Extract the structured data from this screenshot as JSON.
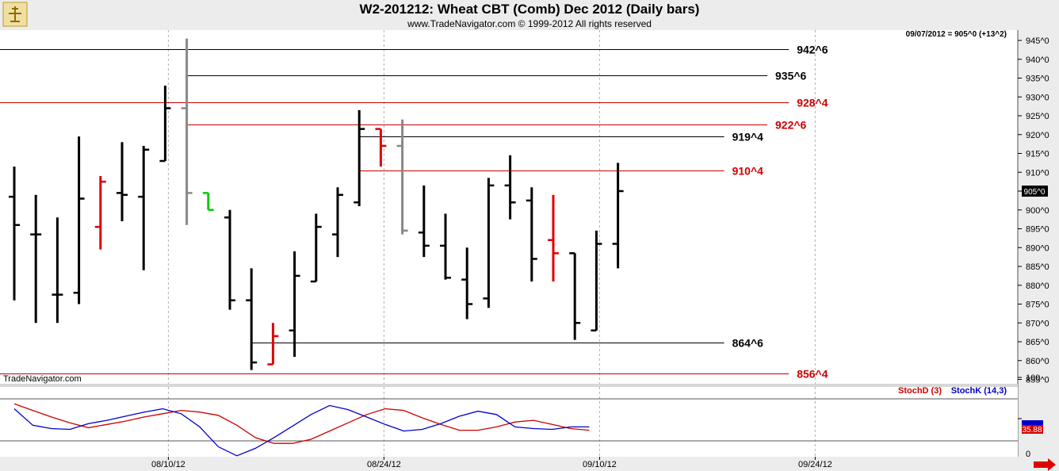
{
  "header": {
    "title": "W2-201212:  Wheat CBT (Comb) Dec 2012  (Daily bars)",
    "subtitle": "www.TradeNavigator.com © 1999-2012 All rights reserved"
  },
  "readout": "09/07/2012 = 905^0 (+13^2)",
  "watermark": "TradeNavigator.com",
  "last_price_label": "905^0",
  "colors": {
    "bar_normal": "#000000",
    "bar_highlight": "#e00000",
    "bar_gray": "#888888",
    "bar_green": "#00cc00",
    "level_black": "#000000",
    "level_red": "#cc0000",
    "stoch_d": "#cc0000",
    "stoch_k": "#0000cc",
    "stoch_d_box": "#d40000",
    "stoch_k_box": "#0000cc"
  },
  "icons": {
    "logo": "tradenavigator-logo-icon",
    "scroll": "red-right-arrow-icon"
  },
  "chart_data": [
    {
      "type": "ohlc",
      "title": "W2-201212:  Wheat CBT (Comb) Dec 2012  (Daily bars)",
      "ylim": [
        855,
        945
      ],
      "y_ticks": [
        "945^0",
        "940^0",
        "935^0",
        "930^0",
        "925^0",
        "920^0",
        "915^0",
        "910^0",
        "905^0",
        "900^0",
        "895^0",
        "890^0",
        "885^0",
        "880^0",
        "875^0",
        "870^0",
        "865^0",
        "860^0",
        "855^0"
      ],
      "x_tick_labels": [
        "08/10/12",
        "08/24/12",
        "09/10/12",
        "09/24/12"
      ],
      "bars": [
        {
          "o": 903.5,
          "h": 911.5,
          "l": 876.0,
          "c": 896.0,
          "color": "black"
        },
        {
          "o": 893.5,
          "h": 904.0,
          "l": 870.0,
          "c": 893.5,
          "color": "black"
        },
        {
          "o": 877.5,
          "h": 898.0,
          "l": 870.0,
          "c": 877.5,
          "color": "black"
        },
        {
          "o": 878.0,
          "h": 919.5,
          "l": 875.0,
          "c": 903.0,
          "color": "black"
        },
        {
          "o": 895.5,
          "h": 909.0,
          "l": 889.5,
          "c": 907.5,
          "color": "red"
        },
        {
          "o": 904.5,
          "h": 918.0,
          "l": 897.0,
          "c": 904.0,
          "color": "black"
        },
        {
          "o": 903.5,
          "h": 917.0,
          "l": 884.0,
          "c": 916.0,
          "color": "black"
        },
        {
          "o": 913.0,
          "h": 933.0,
          "l": 913.0,
          "c": 927.0,
          "color": "black"
        },
        {
          "o": 927.0,
          "h": 945.5,
          "l": 896.0,
          "c": 904.5,
          "color": "gray"
        },
        {
          "o": 904.5,
          "h": 904.5,
          "l": 900.0,
          "c": 900.0,
          "color": "green"
        },
        {
          "o": 898.0,
          "h": 900.0,
          "l": 873.5,
          "c": 876.0,
          "color": "black"
        },
        {
          "o": 876.0,
          "h": 884.5,
          "l": 857.5,
          "c": 859.5,
          "color": "black"
        },
        {
          "o": 859.0,
          "h": 870.0,
          "l": 859.0,
          "c": 866.5,
          "color": "red"
        },
        {
          "o": 868.0,
          "h": 889.0,
          "l": 861.0,
          "c": 882.5,
          "color": "black"
        },
        {
          "o": 881.0,
          "h": 899.0,
          "l": 881.0,
          "c": 895.5,
          "color": "black"
        },
        {
          "o": 893.5,
          "h": 906.0,
          "l": 887.5,
          "c": 904.0,
          "color": "black"
        },
        {
          "o": 902.0,
          "h": 926.5,
          "l": 901.0,
          "c": 921.5,
          "color": "black"
        },
        {
          "o": 921.5,
          "h": 921.5,
          "l": 911.5,
          "c": 917.0,
          "color": "red"
        },
        {
          "o": 917.0,
          "h": 924.0,
          "l": 893.5,
          "c": 894.5,
          "color": "gray"
        },
        {
          "o": 894.0,
          "h": 906.5,
          "l": 887.5,
          "c": 890.5,
          "color": "black"
        },
        {
          "o": 890.5,
          "h": 899.0,
          "l": 881.5,
          "c": 882.0,
          "color": "black"
        },
        {
          "o": 881.5,
          "h": 890.0,
          "l": 871.0,
          "c": 875.0,
          "color": "black"
        },
        {
          "o": 876.5,
          "h": 908.5,
          "l": 874.0,
          "c": 906.5,
          "color": "black"
        },
        {
          "o": 906.5,
          "h": 914.5,
          "l": 897.5,
          "c": 902.0,
          "color": "black"
        },
        {
          "o": 902.5,
          "h": 906.0,
          "l": 881.0,
          "c": 887.0,
          "color": "black"
        },
        {
          "o": 892.0,
          "h": 904.0,
          "l": 881.0,
          "c": 888.5,
          "color": "red"
        },
        {
          "o": 888.5,
          "h": 888.5,
          "l": 865.5,
          "c": 870.0,
          "color": "black"
        },
        {
          "o": 868.0,
          "h": 894.5,
          "l": 868.0,
          "c": 891.0,
          "color": "black"
        },
        {
          "o": 891.0,
          "h": 912.5,
          "l": 884.5,
          "c": 905.0,
          "color": "black"
        }
      ],
      "levels": [
        {
          "value": 942.75,
          "label": "942^6",
          "color": "black",
          "start_bar": -1,
          "end_bar": 36
        },
        {
          "value": 935.75,
          "label": "935^6",
          "color": "black",
          "start_bar": 8,
          "end_bar": 35
        },
        {
          "value": 928.5,
          "label": "928^4",
          "color": "red",
          "start_bar": -1,
          "end_bar": 36
        },
        {
          "value": 922.75,
          "label": "922^6",
          "color": "red",
          "start_bar": 8,
          "end_bar": 35
        },
        {
          "value": 919.5,
          "label": "919^4",
          "color": "black",
          "start_bar": 16,
          "end_bar": 33
        },
        {
          "value": 910.5,
          "label": "910^4",
          "color": "red",
          "start_bar": 16,
          "end_bar": 33
        },
        {
          "value": 864.75,
          "label": "864^6",
          "color": "black",
          "start_bar": 11,
          "end_bar": 33
        },
        {
          "value": 856.5,
          "label": "856^4",
          "color": "red",
          "start_bar": -1,
          "end_bar": 36
        }
      ]
    },
    {
      "type": "line",
      "ylim": [
        0,
        100
      ],
      "y_ticks": [
        "100",
        "50",
        "0"
      ],
      "series": [
        {
          "name": "StochD (3)",
          "last_label": "35.88",
          "values": [
            68,
            60,
            52,
            45,
            39,
            43,
            47,
            52,
            56,
            60,
            58,
            54,
            42,
            27,
            20,
            20,
            25,
            35,
            45,
            55,
            62,
            60,
            51,
            43,
            36,
            36,
            40,
            46,
            48,
            43,
            38,
            36
          ]
        },
        {
          "name": "StochK (14,3)",
          "last_label": "",
          "values": [
            62,
            42,
            38,
            37,
            44,
            48,
            53,
            58,
            62,
            56,
            40,
            16,
            5,
            14,
            27,
            41,
            55,
            66,
            61,
            52,
            43,
            35,
            37,
            44,
            53,
            59,
            55,
            40,
            38,
            37,
            40,
            40
          ]
        }
      ]
    }
  ]
}
